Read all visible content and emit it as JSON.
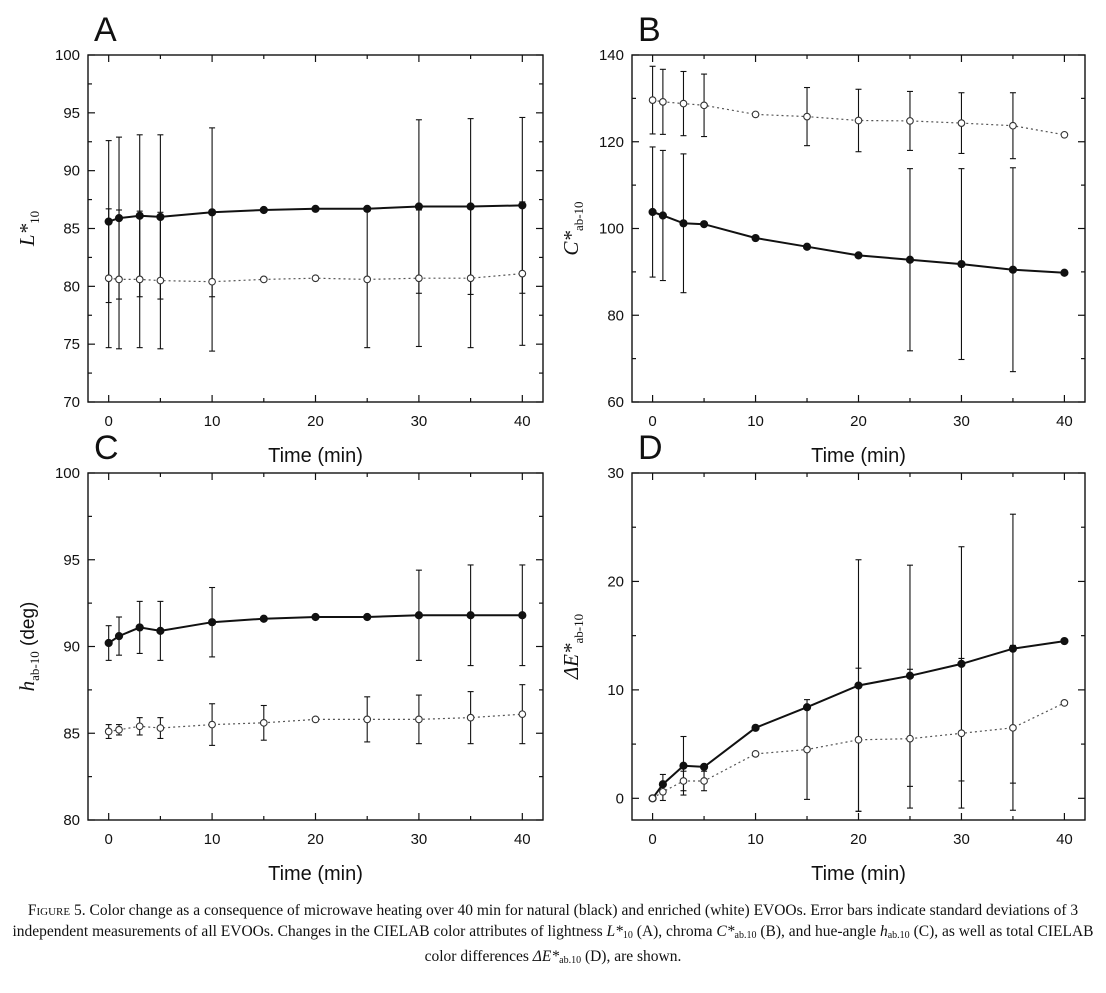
{
  "caption": {
    "label": "Figure 5.",
    "text_1": " Color change as a consequence of microwave heating over 40 min for natural (black) and enriched (white) EVOOs. Error bars indicate standard deviations of 3 independent measurements of all EVOOs. Changes in the CIELAB color attributes of lightness ",
    "sym_L": "L*",
    "sub_L": "10",
    "text_2": " (A), chroma ",
    "sym_C": "C*",
    "sub_C": "ab.10",
    "text_3": " (B), and hue-angle ",
    "sym_h": "h",
    "sub_h": "ab.10",
    "text_4": " (C), as well as total CIELAB color differences ",
    "sym_E": "ΔE*",
    "sub_E": "ab.10",
    "text_5": " (D), are shown."
  },
  "chart_data": [
    {
      "panel": "A",
      "type": "line",
      "xlabel": "Time (min)",
      "ylabel": {
        "symbol": "L*",
        "subscript": "10",
        "rest": ""
      },
      "xlim": [
        -2,
        42
      ],
      "ylim": [
        70,
        100
      ],
      "xticks": [
        0,
        10,
        20,
        30,
        40
      ],
      "yticks": [
        70,
        75,
        80,
        85,
        90,
        95,
        100
      ],
      "legend": "none",
      "grid": false,
      "series": [
        {
          "style": "filled",
          "x": [
            0,
            1,
            3,
            5,
            10,
            15,
            20,
            25,
            30,
            35,
            40
          ],
          "y": [
            85.6,
            85.9,
            86.1,
            86.0,
            86.4,
            86.6,
            86.7,
            86.7,
            86.9,
            86.9,
            87.0
          ],
          "error": [
            7.0,
            7.0,
            7.0,
            7.1,
            7.3,
            0,
            0,
            0,
            7.5,
            7.6,
            7.6
          ]
        },
        {
          "style": "open",
          "x": [
            0,
            1,
            3,
            5,
            10,
            15,
            20,
            25,
            30,
            35,
            40
          ],
          "y": [
            80.7,
            80.6,
            80.6,
            80.5,
            80.4,
            80.6,
            80.7,
            80.6,
            80.7,
            80.7,
            81.1
          ],
          "error": [
            6.0,
            6.0,
            5.9,
            5.9,
            6.0,
            0,
            0,
            5.9,
            5.9,
            6.0,
            6.2
          ]
        }
      ]
    },
    {
      "panel": "B",
      "type": "line",
      "xlabel": "Time (min)",
      "ylabel": {
        "symbol": "C*",
        "subscript": "ab-10",
        "rest": ""
      },
      "xlim": [
        -2,
        42
      ],
      "ylim": [
        60,
        140
      ],
      "xticks": [
        0,
        10,
        20,
        30,
        40
      ],
      "yticks": [
        60,
        80,
        100,
        120,
        140
      ],
      "legend": "none",
      "grid": false,
      "series": [
        {
          "style": "filled",
          "x": [
            0,
            1,
            3,
            5,
            10,
            15,
            20,
            25,
            30,
            35,
            40
          ],
          "y": [
            103.8,
            103.0,
            101.2,
            101.0,
            97.8,
            95.8,
            93.8,
            92.8,
            91.8,
            90.5,
            89.8
          ],
          "error": [
            15.0,
            15.0,
            16.0,
            0,
            0,
            0,
            0,
            21.0,
            22.0,
            23.5,
            0
          ]
        },
        {
          "style": "open",
          "x": [
            0,
            1,
            3,
            5,
            10,
            15,
            20,
            25,
            30,
            35,
            40
          ],
          "y": [
            129.6,
            129.2,
            128.8,
            128.4,
            126.3,
            125.8,
            124.9,
            124.8,
            124.3,
            123.7,
            121.6
          ],
          "error": [
            7.8,
            7.5,
            7.4,
            7.2,
            0,
            6.7,
            7.2,
            6.8,
            7.0,
            7.6,
            0
          ]
        }
      ]
    },
    {
      "panel": "C",
      "type": "line",
      "xlabel": "Time (min)",
      "ylabel": {
        "symbol": "h",
        "subscript": "ab-10",
        "rest": " (deg)"
      },
      "xlim": [
        -2,
        42
      ],
      "ylim": [
        80,
        100
      ],
      "xticks": [
        0,
        10,
        20,
        30,
        40
      ],
      "yticks": [
        80,
        85,
        90,
        95,
        100
      ],
      "legend": "none",
      "grid": false,
      "series": [
        {
          "style": "filled",
          "x": [
            0,
            1,
            3,
            5,
            10,
            15,
            20,
            25,
            30,
            35,
            40
          ],
          "y": [
            90.2,
            90.6,
            91.1,
            90.9,
            91.4,
            91.6,
            91.7,
            91.7,
            91.8,
            91.8,
            91.8
          ],
          "error": [
            1.0,
            1.1,
            1.5,
            1.7,
            2.0,
            0,
            0,
            0,
            2.6,
            2.9,
            2.9
          ]
        },
        {
          "style": "open",
          "x": [
            0,
            1,
            3,
            5,
            10,
            15,
            20,
            25,
            30,
            35,
            40
          ],
          "y": [
            85.1,
            85.2,
            85.4,
            85.3,
            85.5,
            85.6,
            85.8,
            85.8,
            85.8,
            85.9,
            86.1
          ],
          "error": [
            0.4,
            0.3,
            0.5,
            0.6,
            1.2,
            1.0,
            0,
            1.3,
            1.4,
            1.5,
            1.7
          ]
        }
      ]
    },
    {
      "panel": "D",
      "type": "line",
      "xlabel": "Time (min)",
      "ylabel": {
        "symbol": "ΔE*",
        "subscript": "ab-10",
        "rest": ""
      },
      "xlim": [
        -2,
        42
      ],
      "ylim": [
        -2,
        30
      ],
      "xticks": [
        0,
        10,
        20,
        30,
        40
      ],
      "yticks": [
        0,
        10,
        20,
        30
      ],
      "legend": "none",
      "grid": false,
      "series": [
        {
          "style": "filled",
          "x": [
            0,
            1,
            3,
            5,
            10,
            15,
            20,
            25,
            30,
            35,
            40
          ],
          "y": [
            0,
            1.3,
            3.0,
            2.9,
            6.5,
            8.4,
            10.4,
            11.3,
            12.4,
            13.8,
            14.5
          ],
          "error": [
            0,
            0.9,
            2.7,
            0,
            0,
            0,
            11.6,
            10.2,
            10.8,
            12.4,
            0
          ]
        },
        {
          "style": "open",
          "x": [
            0,
            1,
            3,
            5,
            10,
            15,
            20,
            25,
            30,
            35,
            40
          ],
          "y": [
            0,
            0.6,
            1.6,
            1.6,
            4.1,
            4.5,
            5.4,
            5.5,
            6.0,
            6.5,
            8.8
          ],
          "error": [
            0,
            0.8,
            0.9,
            0.9,
            0,
            4.6,
            6.6,
            6.4,
            6.9,
            7.6,
            0
          ]
        }
      ]
    }
  ]
}
